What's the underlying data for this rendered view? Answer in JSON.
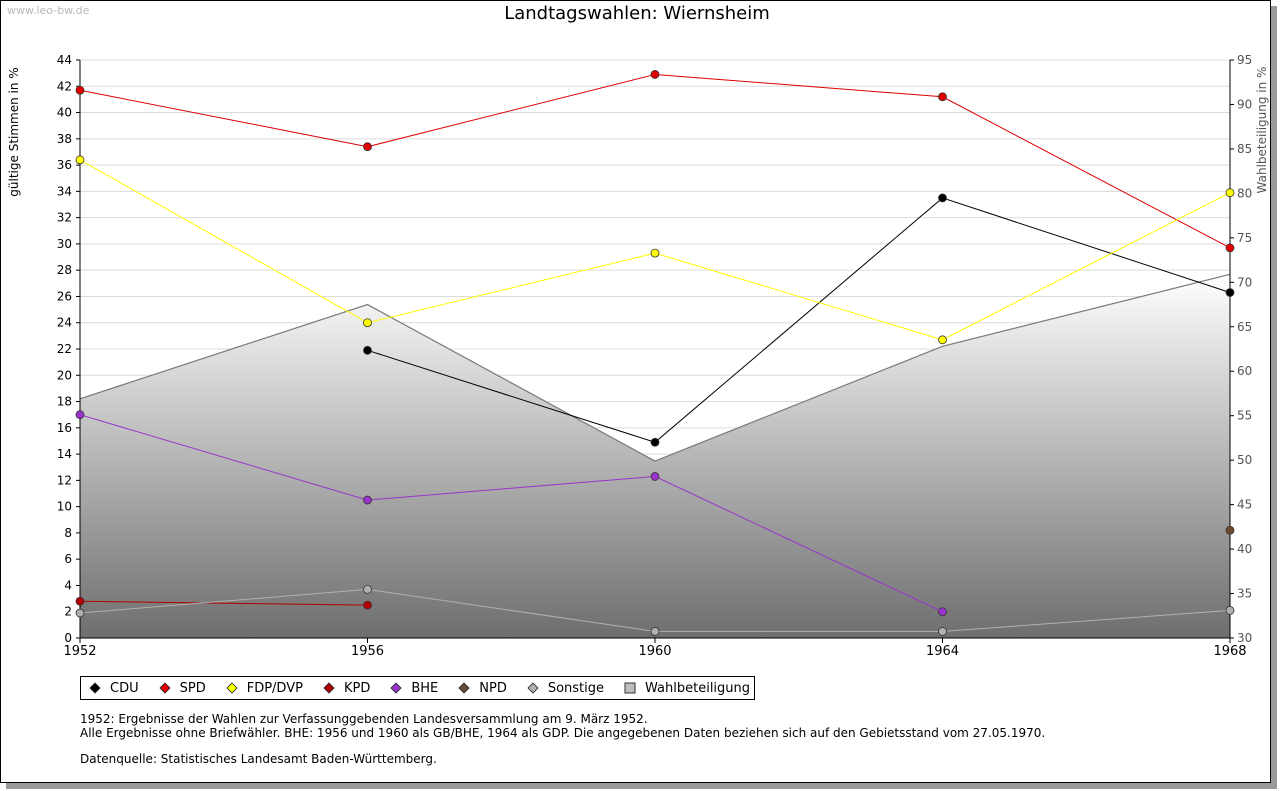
{
  "watermark": "www.leo-bw.de",
  "chart_data": {
    "type": "line",
    "title": "Landtagswahlen: Wiernsheim",
    "ylabel": "gültige Stimmen in %",
    "y2label": "Wahlbeteiligung in %",
    "ylim": [
      0,
      44
    ],
    "y2lim": [
      30,
      95
    ],
    "yticks": [
      0,
      2,
      4,
      6,
      8,
      10,
      12,
      14,
      16,
      18,
      20,
      22,
      24,
      26,
      28,
      30,
      32,
      34,
      36,
      38,
      40,
      42,
      44
    ],
    "y2ticks": [
      30,
      35,
      40,
      45,
      50,
      55,
      60,
      65,
      70,
      75,
      80,
      85,
      90,
      95
    ],
    "x": [
      "1952",
      "1956",
      "1960",
      "1964",
      "1968"
    ],
    "grid": true,
    "legend_position": "bottom",
    "series": [
      {
        "name": "CDU",
        "color": "#000000",
        "values": [
          null,
          21.9,
          14.9,
          33.5,
          26.3
        ]
      },
      {
        "name": "SPD",
        "color": "#e00000",
        "values": [
          41.7,
          37.4,
          42.9,
          41.2,
          29.7
        ]
      },
      {
        "name": "FDP/DVP",
        "color": "#ffff00",
        "values": [
          36.4,
          24.0,
          29.3,
          22.7,
          33.9
        ]
      },
      {
        "name": "KPD",
        "color": "#b00000",
        "values": [
          2.8,
          2.5,
          null,
          null,
          null
        ]
      },
      {
        "name": "BHE",
        "color": "#9933cc",
        "values": [
          17.0,
          10.5,
          12.3,
          2.0,
          null
        ]
      },
      {
        "name": "NPD",
        "color": "#6b4a2e",
        "values": [
          null,
          null,
          null,
          null,
          8.2
        ]
      },
      {
        "name": "Sonstige",
        "color": "#b0b0b0",
        "values": [
          1.9,
          3.7,
          0.5,
          0.5,
          2.1
        ]
      }
    ],
    "turnout": {
      "name": "Wahlbeteiligung",
      "axis": "right",
      "values": [
        56.9,
        67.5,
        49.9,
        62.8,
        70.9
      ]
    }
  },
  "notes": {
    "line1": "1952: Ergebnisse der Wahlen zur Verfassunggebenden Landesversammlung am 9. März 1952.",
    "line2": "Alle Ergebnisse ohne Briefwähler. BHE: 1956 und 1960 als GB/BHE, 1964 als GDP. Die angegebenen Daten beziehen sich auf den Gebietsstand vom 27.05.1970.",
    "source": "Datenquelle: Statistisches Landesamt Baden-Württemberg."
  }
}
